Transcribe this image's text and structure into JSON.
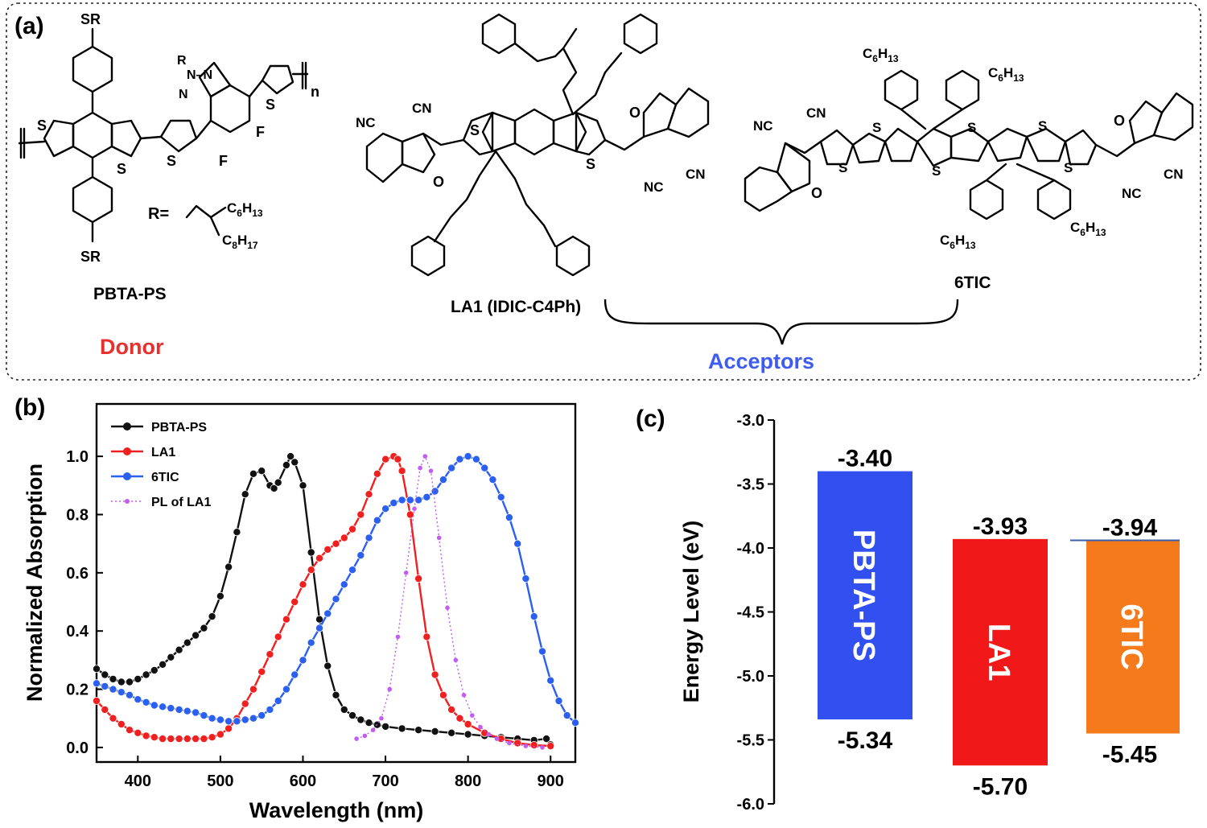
{
  "panel_a": {
    "label": "(a)",
    "donor_name": "PBTA-PS",
    "donor_role": "Donor",
    "acceptor1_name": "LA1 (IDIC-C4Ph)",
    "acceptor2_name": "6TIC",
    "acceptor_group_label": "Acceptors",
    "r_label": "R=",
    "colors": {
      "donor": "#e8312e",
      "acceptors": "#3e5cf0"
    }
  },
  "chart_data": [
    {
      "type": "line",
      "panel_label": "(b)",
      "xlabel": "Wavelength (nm)",
      "ylabel": "Normalized Absorption",
      "xlim": [
        350,
        930
      ],
      "ylim": [
        -0.05,
        1.18
      ],
      "xticks": [
        400,
        500,
        600,
        700,
        800,
        900
      ],
      "yticks": [
        0.0,
        0.2,
        0.4,
        0.6,
        0.8,
        1.0
      ],
      "grid": false,
      "legend_position": "top-left",
      "series": [
        {
          "name": "PBTA-PS",
          "color": "#111111",
          "marker": "circle",
          "points": [
            [
              350,
              0.27
            ],
            [
              360,
              0.25
            ],
            [
              370,
              0.235
            ],
            [
              380,
              0.225
            ],
            [
              390,
              0.225
            ],
            [
              400,
              0.235
            ],
            [
              410,
              0.25
            ],
            [
              420,
              0.265
            ],
            [
              430,
              0.285
            ],
            [
              440,
              0.31
            ],
            [
              450,
              0.335
            ],
            [
              460,
              0.36
            ],
            [
              470,
              0.385
            ],
            [
              480,
              0.41
            ],
            [
              490,
              0.45
            ],
            [
              500,
              0.52
            ],
            [
              510,
              0.62
            ],
            [
              520,
              0.74
            ],
            [
              530,
              0.87
            ],
            [
              540,
              0.94
            ],
            [
              550,
              0.95
            ],
            [
              560,
              0.9
            ],
            [
              565,
              0.89
            ],
            [
              570,
              0.91
            ],
            [
              580,
              0.97
            ],
            [
              585,
              1.0
            ],
            [
              590,
              0.98
            ],
            [
              600,
              0.9
            ],
            [
              610,
              0.67
            ],
            [
              620,
              0.44
            ],
            [
              630,
              0.28
            ],
            [
              640,
              0.18
            ],
            [
              650,
              0.13
            ],
            [
              660,
              0.11
            ],
            [
              670,
              0.095
            ],
            [
              680,
              0.085
            ],
            [
              690,
              0.078
            ],
            [
              700,
              0.072
            ],
            [
              720,
              0.065
            ],
            [
              740,
              0.06
            ],
            [
              760,
              0.055
            ],
            [
              780,
              0.05
            ],
            [
              800,
              0.045
            ],
            [
              820,
              0.04
            ],
            [
              840,
              0.035
            ],
            [
              860,
              0.03
            ],
            [
              880,
              0.025
            ],
            [
              895,
              0.03
            ],
            [
              900,
              0.01
            ]
          ]
        },
        {
          "name": "LA1",
          "color": "#f02020",
          "marker": "circle",
          "points": [
            [
              350,
              0.16
            ],
            [
              360,
              0.13
            ],
            [
              370,
              0.1
            ],
            [
              380,
              0.08
            ],
            [
              390,
              0.06
            ],
            [
              400,
              0.05
            ],
            [
              410,
              0.04
            ],
            [
              420,
              0.035
            ],
            [
              430,
              0.03
            ],
            [
              440,
              0.03
            ],
            [
              450,
              0.03
            ],
            [
              460,
              0.03
            ],
            [
              470,
              0.03
            ],
            [
              480,
              0.03
            ],
            [
              490,
              0.035
            ],
            [
              500,
              0.045
            ],
            [
              510,
              0.065
            ],
            [
              520,
              0.1
            ],
            [
              530,
              0.15
            ],
            [
              540,
              0.2
            ],
            [
              550,
              0.26
            ],
            [
              560,
              0.32
            ],
            [
              570,
              0.38
            ],
            [
              580,
              0.44
            ],
            [
              590,
              0.5
            ],
            [
              600,
              0.56
            ],
            [
              610,
              0.61
            ],
            [
              620,
              0.65
            ],
            [
              630,
              0.68
            ],
            [
              640,
              0.7
            ],
            [
              650,
              0.72
            ],
            [
              660,
              0.75
            ],
            [
              670,
              0.8
            ],
            [
              680,
              0.87
            ],
            [
              690,
              0.94
            ],
            [
              700,
              0.99
            ],
            [
              710,
              1.0
            ],
            [
              715,
              0.99
            ],
            [
              720,
              0.95
            ],
            [
              730,
              0.8
            ],
            [
              740,
              0.58
            ],
            [
              750,
              0.38
            ],
            [
              760,
              0.25
            ],
            [
              770,
              0.18
            ],
            [
              780,
              0.13
            ],
            [
              790,
              0.1
            ],
            [
              800,
              0.08
            ],
            [
              820,
              0.05
            ],
            [
              840,
              0.03
            ],
            [
              860,
              0.015
            ],
            [
              880,
              0.008
            ],
            [
              900,
              0.005
            ]
          ]
        },
        {
          "name": "6TIC",
          "color": "#2b5ff0",
          "marker": "circle",
          "points": [
            [
              350,
              0.22
            ],
            [
              360,
              0.21
            ],
            [
              370,
              0.2
            ],
            [
              380,
              0.19
            ],
            [
              390,
              0.18
            ],
            [
              400,
              0.165
            ],
            [
              410,
              0.155
            ],
            [
              420,
              0.145
            ],
            [
              430,
              0.14
            ],
            [
              440,
              0.135
            ],
            [
              450,
              0.13
            ],
            [
              460,
              0.125
            ],
            [
              470,
              0.12
            ],
            [
              480,
              0.11
            ],
            [
              490,
              0.1
            ],
            [
              500,
              0.095
            ],
            [
              510,
              0.09
            ],
            [
              520,
              0.09
            ],
            [
              530,
              0.095
            ],
            [
              540,
              0.1
            ],
            [
              550,
              0.11
            ],
            [
              560,
              0.13
            ],
            [
              570,
              0.16
            ],
            [
              580,
              0.2
            ],
            [
              590,
              0.25
            ],
            [
              600,
              0.3
            ],
            [
              610,
              0.36
            ],
            [
              620,
              0.41
            ],
            [
              630,
              0.46
            ],
            [
              640,
              0.51
            ],
            [
              650,
              0.56
            ],
            [
              660,
              0.61
            ],
            [
              670,
              0.66
            ],
            [
              680,
              0.72
            ],
            [
              690,
              0.78
            ],
            [
              700,
              0.82
            ],
            [
              710,
              0.84
            ],
            [
              720,
              0.85
            ],
            [
              730,
              0.85
            ],
            [
              740,
              0.85
            ],
            [
              750,
              0.86
            ],
            [
              760,
              0.88
            ],
            [
              770,
              0.92
            ],
            [
              780,
              0.96
            ],
            [
              790,
              0.99
            ],
            [
              800,
              1.0
            ],
            [
              810,
              0.99
            ],
            [
              820,
              0.96
            ],
            [
              830,
              0.92
            ],
            [
              840,
              0.86
            ],
            [
              850,
              0.79
            ],
            [
              860,
              0.7
            ],
            [
              870,
              0.58
            ],
            [
              880,
              0.45
            ],
            [
              890,
              0.33
            ],
            [
              900,
              0.23
            ],
            [
              910,
              0.16
            ],
            [
              920,
              0.11
            ],
            [
              930,
              0.085
            ]
          ]
        },
        {
          "name": "PL of  LA1",
          "color": "#c35cf0",
          "marker": "dot",
          "points": [
            [
              665,
              0.03
            ],
            [
              675,
              0.04
            ],
            [
              685,
              0.06
            ],
            [
              695,
              0.1
            ],
            [
              705,
              0.2
            ],
            [
              715,
              0.38
            ],
            [
              725,
              0.6
            ],
            [
              735,
              0.82
            ],
            [
              742,
              0.96
            ],
            [
              748,
              1.0
            ],
            [
              755,
              0.95
            ],
            [
              765,
              0.72
            ],
            [
              775,
              0.48
            ],
            [
              785,
              0.3
            ],
            [
              795,
              0.18
            ],
            [
              805,
              0.11
            ],
            [
              815,
              0.07
            ],
            [
              825,
              0.045
            ],
            [
              835,
              0.03
            ],
            [
              850,
              0.015
            ],
            [
              870,
              0.005
            ],
            [
              890,
              0.0
            ]
          ]
        }
      ]
    },
    {
      "type": "bar",
      "panel_label": "(c)",
      "ylabel": "Energy Level (eV)",
      "ylim": [
        -6.0,
        -3.0
      ],
      "yticks": [
        "-3.0",
        "-3.5",
        "-4.0",
        "-4.5",
        "-5.0",
        "-5.5",
        "-6.0"
      ],
      "grid": false,
      "categories": [
        "PBTA-PS",
        "LA1",
        "6TIC"
      ],
      "lumo": [
        -3.4,
        -3.93,
        -3.94
      ],
      "homo": [
        -5.34,
        -5.7,
        -5.45
      ],
      "lumo_labels": [
        "-3.40",
        "-3.93",
        "-3.94"
      ],
      "homo_labels": [
        "-5.34",
        "-5.70",
        "-5.45"
      ],
      "colors": [
        "#3150ef",
        "#f01818",
        "#f57a1c"
      ]
    }
  ]
}
